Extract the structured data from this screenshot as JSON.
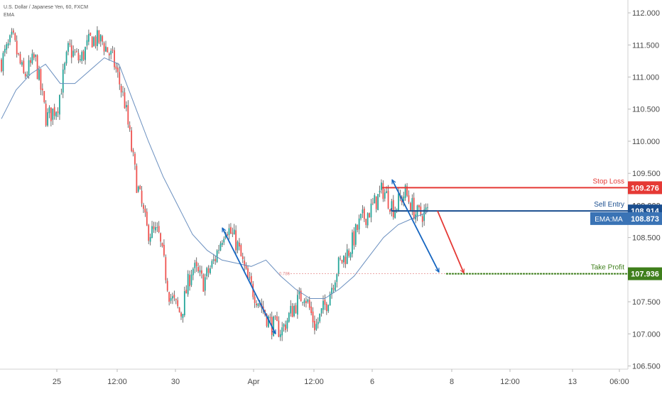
{
  "header": {
    "symbol_line": "U.S. Dollar / Japanese Yen, 60, FXCM",
    "indicator": "EMA"
  },
  "colors": {
    "up": "#26a69a",
    "down": "#ef5350",
    "candle_body": "#4a4a4a",
    "ema": "#6a8fbf",
    "arrow_blue": "#1565c0",
    "arrow_red": "#e53935",
    "stop_loss": "#e53935",
    "sell_entry": "#1a4e8f",
    "ema_badge": "#3a73b5",
    "take_profit": "#3f7f1c",
    "fib": "#e58a8a"
  },
  "chart_data": {
    "type": "candlestick",
    "title": "U.S. Dollar / Japanese Yen, 60, FXCM",
    "y_axis": {
      "ylim": [
        106.45,
        112.2
      ],
      "ticks": [
        "112.000",
        "111.500",
        "111.000",
        "110.500",
        "110.000",
        "109.500",
        "109.000",
        "108.500",
        "107.500",
        "107.000",
        "106.500"
      ]
    },
    "x_axis": {
      "ticks": [
        "25",
        "12:00",
        "30",
        "Apr",
        "12:00",
        "6",
        "8",
        "12:00",
        "13",
        "06:00"
      ]
    },
    "price_path": [
      111.25,
      111.6,
      111.0,
      111.3,
      110.35,
      110.55,
      111.45,
      111.25,
      111.6,
      111.55,
      111.25,
      110.6,
      109.4,
      108.6,
      108.55,
      107.6,
      107.3,
      108.05,
      107.8,
      108.15,
      108.7,
      108.4,
      107.8,
      107.5,
      107.15,
      107.05,
      107.4,
      107.65,
      107.1,
      107.5,
      108.05,
      108.3,
      108.75,
      108.95,
      109.25,
      108.95,
      109.2,
      108.85,
      108.9
    ],
    "ema_path": [
      110.35,
      110.8,
      111.05,
      111.2,
      110.9,
      110.9,
      111.1,
      111.3,
      111.2,
      110.6,
      110.0,
      109.45,
      109.0,
      108.55,
      108.3,
      108.15,
      108.1,
      108.05,
      108.15,
      107.9,
      107.7,
      107.55,
      107.55,
      107.7,
      107.9,
      108.2,
      108.5,
      108.7,
      108.8,
      108.9
    ],
    "levels": {
      "stop_loss": {
        "label": "Stop Loss",
        "value": "109.276"
      },
      "sell_entry": {
        "label": "Sell Entry",
        "value": "108.914"
      },
      "ema_ma": {
        "label": "EMA:MA",
        "value": "108.873"
      },
      "take_profit": {
        "label": "Take Profit",
        "value": "107.936"
      }
    },
    "fib_label": "0.786",
    "hidden_axis_label": "109.000"
  }
}
